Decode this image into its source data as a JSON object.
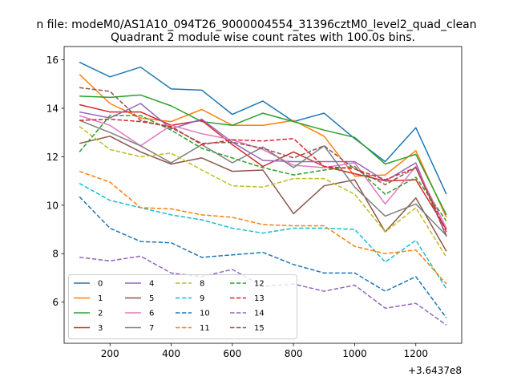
{
  "chart_data": {
    "type": "line",
    "suptitle": "n file: modeM0/AS1A10_094T26_9000004554_31396cztM0_level2_quad_clean",
    "title": "Quadrant 2 module wise count rates with 100.0s bins.",
    "xlabel": "",
    "ylabel": "",
    "x_offset_label": "+3.6437e8",
    "x": [
      100,
      200,
      300,
      400,
      500,
      600,
      700,
      800,
      900,
      1000,
      1100,
      1200,
      1300
    ],
    "xlim": [
      50,
      1350
    ],
    "ylim": [
      4.3,
      16.55
    ],
    "xticks": [
      200,
      400,
      600,
      800,
      1000,
      1200
    ],
    "xtick_labels": [
      "200",
      "400",
      "600",
      "800",
      "1000",
      "1200"
    ],
    "yticks": [
      6,
      8,
      10,
      12,
      14,
      16
    ],
    "ytick_labels": [
      "6",
      "8",
      "10",
      "12",
      "14",
      "16"
    ],
    "grid": false,
    "legend_position": "lower-left",
    "legend_columns": 4,
    "series": [
      {
        "name": "0",
        "color": "#1f77b4",
        "dash": "solid",
        "values": [
          15.9,
          15.3,
          15.7,
          14.8,
          14.75,
          13.75,
          14.3,
          13.45,
          13.8,
          12.75,
          11.8,
          13.2,
          10.45
        ]
      },
      {
        "name": "1",
        "color": "#ff7f0e",
        "dash": "solid",
        "values": [
          15.4,
          14.2,
          13.6,
          13.45,
          13.95,
          13.3,
          13.3,
          13.5,
          12.85,
          11.2,
          11.25,
          12.25,
          9.5
        ]
      },
      {
        "name": "2",
        "color": "#2ca02c",
        "dash": "solid",
        "values": [
          14.5,
          14.45,
          14.55,
          14.1,
          13.45,
          13.3,
          13.8,
          13.45,
          13.1,
          12.8,
          11.7,
          12.1,
          9.6
        ]
      },
      {
        "name": "3",
        "color": "#d62728",
        "dash": "solid",
        "values": [
          14.15,
          13.85,
          13.85,
          13.3,
          13.5,
          12.5,
          11.6,
          12.2,
          11.6,
          11.3,
          11.0,
          11.05,
          9.0
        ]
      },
      {
        "name": "4",
        "color": "#9467bd",
        "dash": "solid",
        "values": [
          13.85,
          13.6,
          14.2,
          13.15,
          13.55,
          12.6,
          11.85,
          11.8,
          11.8,
          11.8,
          11.0,
          11.75,
          8.7
        ]
      },
      {
        "name": "5",
        "color": "#8c564b",
        "dash": "solid",
        "values": [
          12.55,
          12.85,
          12.2,
          11.7,
          11.95,
          11.4,
          11.45,
          9.65,
          10.8,
          11.05,
          8.9,
          10.3,
          8.1
        ]
      },
      {
        "name": "6",
        "color": "#e377c2",
        "dash": "solid",
        "values": [
          13.7,
          13.3,
          12.45,
          13.3,
          12.95,
          12.7,
          12.3,
          11.65,
          11.55,
          11.75,
          10.05,
          11.6,
          9.05
        ]
      },
      {
        "name": "7",
        "color": "#7f7f7f",
        "dash": "solid",
        "values": [
          13.5,
          13.0,
          12.45,
          11.75,
          12.5,
          11.75,
          12.4,
          11.55,
          12.45,
          10.75,
          9.55,
          10.05,
          8.75
        ]
      },
      {
        "name": "8",
        "color": "#bcbd22",
        "dash": "dashed",
        "values": [
          13.25,
          12.3,
          12.0,
          12.15,
          11.45,
          10.8,
          10.75,
          11.1,
          11.1,
          10.45,
          8.9,
          9.9,
          7.85
        ]
      },
      {
        "name": "9",
        "color": "#17becf",
        "dash": "dashed",
        "values": [
          10.9,
          10.2,
          9.9,
          9.6,
          9.4,
          9.05,
          8.85,
          9.05,
          9.05,
          9.0,
          7.65,
          8.55,
          6.55
        ]
      },
      {
        "name": "10",
        "color": "#1f77b4",
        "dash": "dashed",
        "values": [
          10.35,
          9.05,
          8.5,
          8.45,
          7.85,
          7.95,
          8.05,
          7.55,
          7.2,
          7.2,
          6.45,
          7.05,
          5.35
        ]
      },
      {
        "name": "11",
        "color": "#ff7f0e",
        "dash": "dashed",
        "values": [
          11.4,
          10.95,
          9.9,
          9.85,
          9.6,
          9.5,
          9.2,
          9.15,
          9.15,
          8.3,
          8.0,
          8.15,
          6.75
        ]
      },
      {
        "name": "12",
        "color": "#2ca02c",
        "dash": "dashed",
        "values": [
          12.2,
          13.7,
          13.7,
          13.1,
          12.35,
          11.95,
          11.55,
          11.25,
          11.45,
          11.6,
          10.45,
          11.15,
          9.35
        ]
      },
      {
        "name": "13",
        "color": "#d62728",
        "dash": "dashed",
        "values": [
          13.5,
          13.55,
          13.45,
          13.25,
          12.5,
          12.7,
          12.65,
          12.75,
          11.6,
          11.5,
          11.05,
          11.55,
          8.9
        ]
      },
      {
        "name": "14",
        "color": "#9467bd",
        "dash": "dashed",
        "values": [
          7.85,
          7.7,
          7.9,
          7.2,
          7.05,
          7.35,
          6.65,
          6.75,
          6.45,
          6.7,
          5.75,
          5.95,
          5.05
        ]
      },
      {
        "name": "15",
        "color": "#8c564b",
        "dash": "dashed",
        "values": [
          14.85,
          14.7,
          13.5,
          13.2,
          12.55,
          12.6,
          12.35,
          11.95,
          12.45,
          11.5,
          10.85,
          11.55,
          8.75
        ]
      }
    ]
  }
}
